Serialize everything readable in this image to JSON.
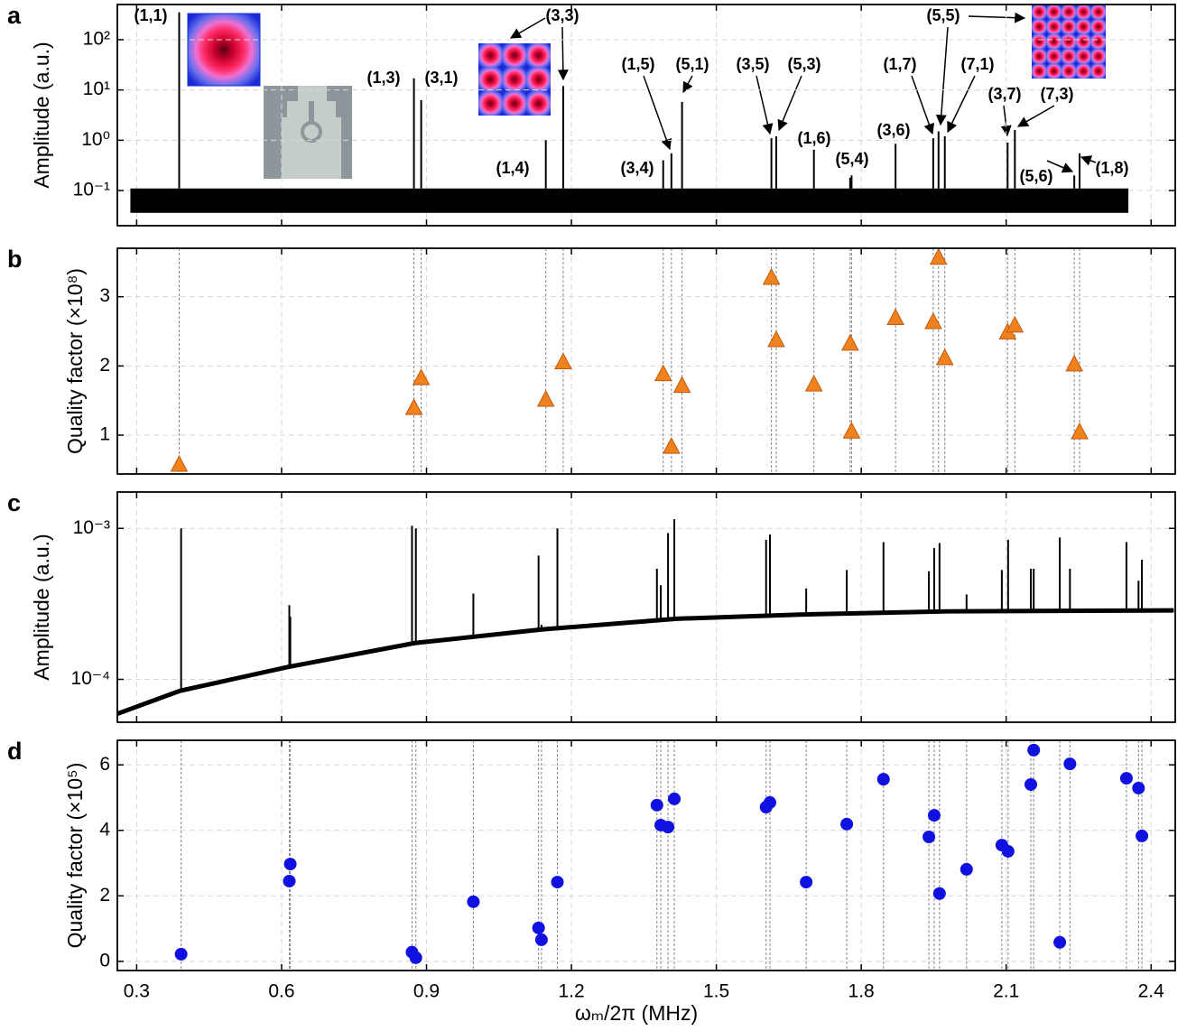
{
  "chart_data": [
    {
      "panel": "a",
      "type": "spectrum",
      "ylabel": "Amplitude (a.u.)",
      "log_y": true,
      "grid": true,
      "color": "#000000",
      "xlim": [
        0.26,
        2.45
      ],
      "xticks": [
        0.3,
        0.6,
        0.9,
        1.2,
        1.5,
        1.8,
        2.1,
        2.4
      ],
      "xtick_labels": false,
      "ylim": [
        0.02,
        500
      ],
      "yticks": [
        {
          "value": 0.1,
          "label": "10⁻¹"
        },
        {
          "value": 1,
          "label": "10⁰"
        },
        {
          "value": 10,
          "label": "10¹"
        },
        {
          "value": 100,
          "label": "10²"
        }
      ],
      "noise_band": {
        "x": [
          0.287,
          2.353
        ],
        "lower": [
          0.036,
          0.036
        ],
        "upper": [
          0.11,
          0.11
        ]
      },
      "peaks": {
        "x": [
          0.388,
          0.874,
          0.889,
          1.147,
          1.183,
          1.39,
          1.407,
          1.429,
          1.614,
          1.624,
          1.702,
          1.777,
          1.78,
          1.871,
          1.949,
          1.96,
          1.973,
          2.103,
          2.118,
          2.241,
          2.252
        ],
        "values": [
          350,
          17,
          6.3,
          1.0,
          12,
          0.4,
          0.55,
          5.8,
          1.1,
          1.2,
          0.65,
          0.18,
          0.2,
          0.85,
          1.1,
          1.5,
          1.2,
          0.9,
          1.6,
          0.2,
          0.55
        ]
      },
      "annotations": [
        {
          "text": "(1,1)",
          "color": "#2020d0"
        },
        {
          "text": "(1,3)",
          "color": "#e8201c"
        },
        {
          "text": "(3,1)",
          "color": "#e8201c"
        },
        {
          "text": "(3,3)",
          "color": "#2020d0"
        },
        {
          "text": "(1,4)",
          "color": "#000000"
        },
        {
          "text": "(3,4)",
          "color": "#000000"
        },
        {
          "text": "(1,5)",
          "color": "#e8201c"
        },
        {
          "text": "(5,1)",
          "color": "#e8201c"
        },
        {
          "text": "(3,5)",
          "color": "#e8201c"
        },
        {
          "text": "(5,3)",
          "color": "#e8201c"
        },
        {
          "text": "(1,6)",
          "color": "#000000"
        },
        {
          "text": "(5,4)",
          "color": "#000000"
        },
        {
          "text": "(3,6)",
          "color": "#000000"
        },
        {
          "text": "(1,7)",
          "color": "#e8201c"
        },
        {
          "text": "(5,5)",
          "color": "#2020d0"
        },
        {
          "text": "(7,1)",
          "color": "#e8201c"
        },
        {
          "text": "(3,7)",
          "color": "#e8201c"
        },
        {
          "text": "(7,3)",
          "color": "#e8201c"
        },
        {
          "text": "(5,6)",
          "color": "#000000"
        },
        {
          "text": "(1,8)",
          "color": "#000000"
        }
      ]
    },
    {
      "panel": "b",
      "type": "scatter",
      "ylabel": "Quality factor (×10⁸)",
      "log_y": false,
      "grid": true,
      "color": "#f0821e",
      "marker": "triangle",
      "guides": true,
      "xlim": [
        0.26,
        2.45
      ],
      "xticks": [
        0.3,
        0.6,
        0.9,
        1.2,
        1.5,
        1.8,
        2.1,
        2.4
      ],
      "xtick_labels": false,
      "ylim": [
        0.44,
        3.7
      ],
      "yticks": [
        1,
        2,
        3
      ],
      "x": [
        0.388,
        0.874,
        0.889,
        1.147,
        1.183,
        1.39,
        1.407,
        1.429,
        1.614,
        1.624,
        1.702,
        1.777,
        1.78,
        1.871,
        1.949,
        1.96,
        1.973,
        2.103,
        2.118,
        2.241,
        2.252
      ],
      "values": [
        0.57,
        1.39,
        1.82,
        1.51,
        2.05,
        1.88,
        0.83,
        1.71,
        3.27,
        2.37,
        1.73,
        2.32,
        1.05,
        2.69,
        2.63,
        3.56,
        2.11,
        2.48,
        2.58,
        2.02,
        1.04
      ]
    },
    {
      "panel": "c",
      "type": "spectrum",
      "ylabel": "Amplitude (a.u.)",
      "log_y": true,
      "grid": true,
      "color": "#000000",
      "xlim": [
        0.26,
        2.45
      ],
      "xticks": [
        0.3,
        0.6,
        0.9,
        1.2,
        1.5,
        1.8,
        2.1,
        2.4
      ],
      "xtick_labels": false,
      "ylim": [
        5.2e-05,
        0.00174
      ],
      "yticks": [
        {
          "value": 0.0001,
          "label": "10⁻⁴"
        },
        {
          "value": 0.001,
          "label": "10⁻³"
        }
      ],
      "background": {
        "x": [
          0.259,
          0.39,
          0.614,
          0.876,
          1.138,
          1.418,
          1.699,
          1.979,
          2.447
        ],
        "values": [
          5.9e-05,
          8.4e-05,
          0.000121,
          0.000174,
          0.000214,
          0.000252,
          0.00027,
          0.000282,
          0.000286
        ]
      },
      "peaks": {
        "x": [
          0.392,
          0.616,
          0.618,
          0.87,
          0.878,
          0.997,
          1.132,
          1.138,
          1.171,
          1.377,
          1.385,
          1.4,
          1.413,
          1.603,
          1.611,
          1.686,
          1.77,
          1.846,
          1.94,
          1.951,
          1.962,
          2.018,
          2.091,
          2.104,
          2.151,
          2.157,
          2.211,
          2.232,
          2.349,
          2.374,
          2.381
        ],
        "values": [
          0.001,
          0.00031,
          0.00026,
          0.00104,
          0.001,
          0.00037,
          0.00066,
          0.00023,
          0.001,
          0.00054,
          0.00042,
          0.00093,
          0.00115,
          0.00084,
          0.00091,
          0.0004,
          0.00053,
          0.00081,
          0.00052,
          0.00074,
          0.0008,
          0.000365,
          0.00053,
          0.00084,
          0.00054,
          0.00054,
          0.00087,
          0.00054,
          0.00081,
          0.00045,
          0.00062
        ]
      }
    },
    {
      "panel": "d",
      "type": "scatter",
      "ylabel": "Quality factor (×10⁵)",
      "xlabel": "ωₘ/2π (MHz)",
      "log_y": false,
      "grid": true,
      "color": "#1010e0",
      "marker": "circle",
      "guides": true,
      "xlim": [
        0.26,
        2.45
      ],
      "xticks": [
        0.3,
        0.6,
        0.9,
        1.2,
        1.5,
        1.8,
        2.1,
        2.4
      ],
      "xtick_labels": true,
      "ylim": [
        -0.28,
        6.75
      ],
      "yticks": [
        0,
        2,
        4,
        6
      ],
      "x": [
        0.392,
        0.616,
        0.618,
        0.87,
        0.878,
        0.997,
        1.132,
        1.138,
        1.171,
        1.377,
        1.385,
        1.4,
        1.413,
        1.603,
        1.611,
        1.686,
        1.77,
        1.846,
        1.94,
        1.951,
        1.962,
        2.018,
        2.091,
        2.104,
        2.151,
        2.157,
        2.211,
        2.232,
        2.349,
        2.374,
        2.381
      ],
      "values": [
        0.22,
        2.45,
        2.97,
        0.28,
        0.11,
        1.82,
        1.02,
        0.66,
        2.42,
        4.77,
        4.16,
        4.1,
        4.96,
        4.71,
        4.85,
        2.42,
        4.19,
        5.56,
        3.8,
        4.46,
        2.07,
        2.81,
        3.55,
        3.36,
        5.4,
        6.45,
        0.58,
        6.03,
        5.59,
        5.29,
        3.83
      ]
    }
  ]
}
